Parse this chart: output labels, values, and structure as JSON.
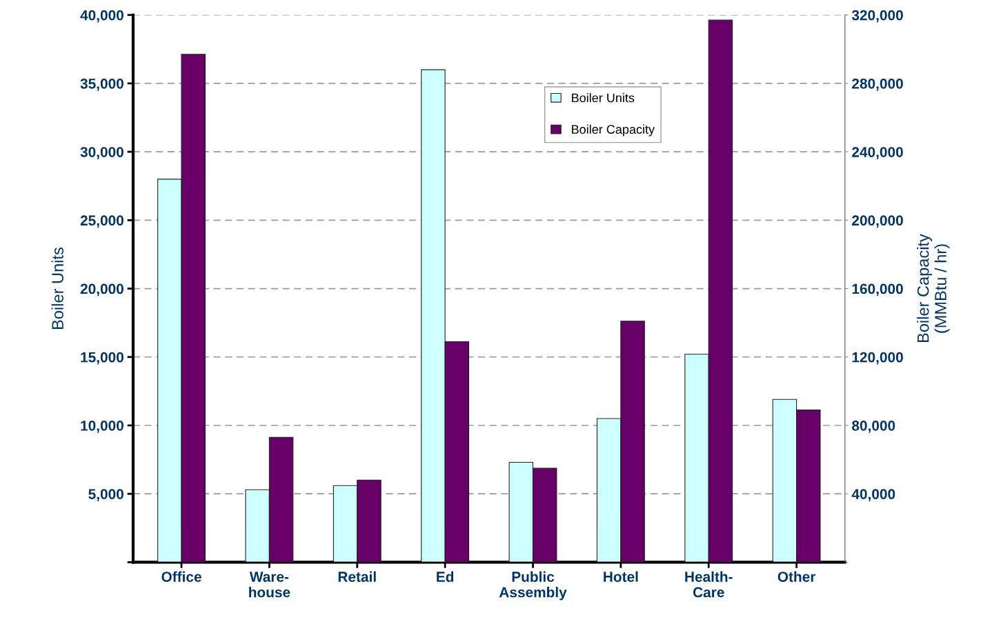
{
  "chart_data": {
    "type": "bar",
    "categories": [
      "Office",
      "Ware-\nhouse",
      "Retail",
      "Ed",
      "Public\nAssembly",
      "Hotel",
      "Health-\nCare",
      "Other"
    ],
    "series": [
      {
        "name": "Boiler Units",
        "color": "#ccffff",
        "values": [
          28000,
          5300,
          5600,
          36000,
          7300,
          10500,
          15200,
          11900
        ]
      },
      {
        "name": "Boiler Capacity",
        "color": "#660066",
        "axis": "y2",
        "values": [
          297000,
          73000,
          48000,
          129000,
          55000,
          141000,
          317000,
          89000
        ]
      }
    ],
    "ylabel": "Boiler Units",
    "y2label": "Boiler Capacity\n(MMBtu / hr)",
    "ylim": [
      0,
      40000
    ],
    "yticks": [
      {
        "value": 0,
        "label": null
      },
      {
        "value": 5000,
        "label": "5,000"
      },
      {
        "value": 10000,
        "label": "10,000"
      },
      {
        "value": 15000,
        "label": "15,000"
      },
      {
        "value": 20000,
        "label": "20,000"
      },
      {
        "value": 25000,
        "label": "25,000"
      },
      {
        "value": 30000,
        "label": "30,000"
      },
      {
        "value": 35000,
        "label": "35,000"
      },
      {
        "value": 40000,
        "label": "40,000"
      }
    ],
    "y2lim": [
      0,
      320000
    ],
    "y2ticks": [
      {
        "value": 0,
        "label": null
      },
      {
        "value": 40000,
        "label": "40,000"
      },
      {
        "value": 80000,
        "label": "80,000"
      },
      {
        "value": 120000,
        "label": "120,000"
      },
      {
        "value": 160000,
        "label": "160,000"
      },
      {
        "value": 200000,
        "label": "200,000"
      },
      {
        "value": 240000,
        "label": "240,000"
      },
      {
        "value": 280000,
        "label": "280,000"
      },
      {
        "value": 320000,
        "label": "320,000"
      }
    ],
    "grid": "y",
    "legend": "top"
  }
}
